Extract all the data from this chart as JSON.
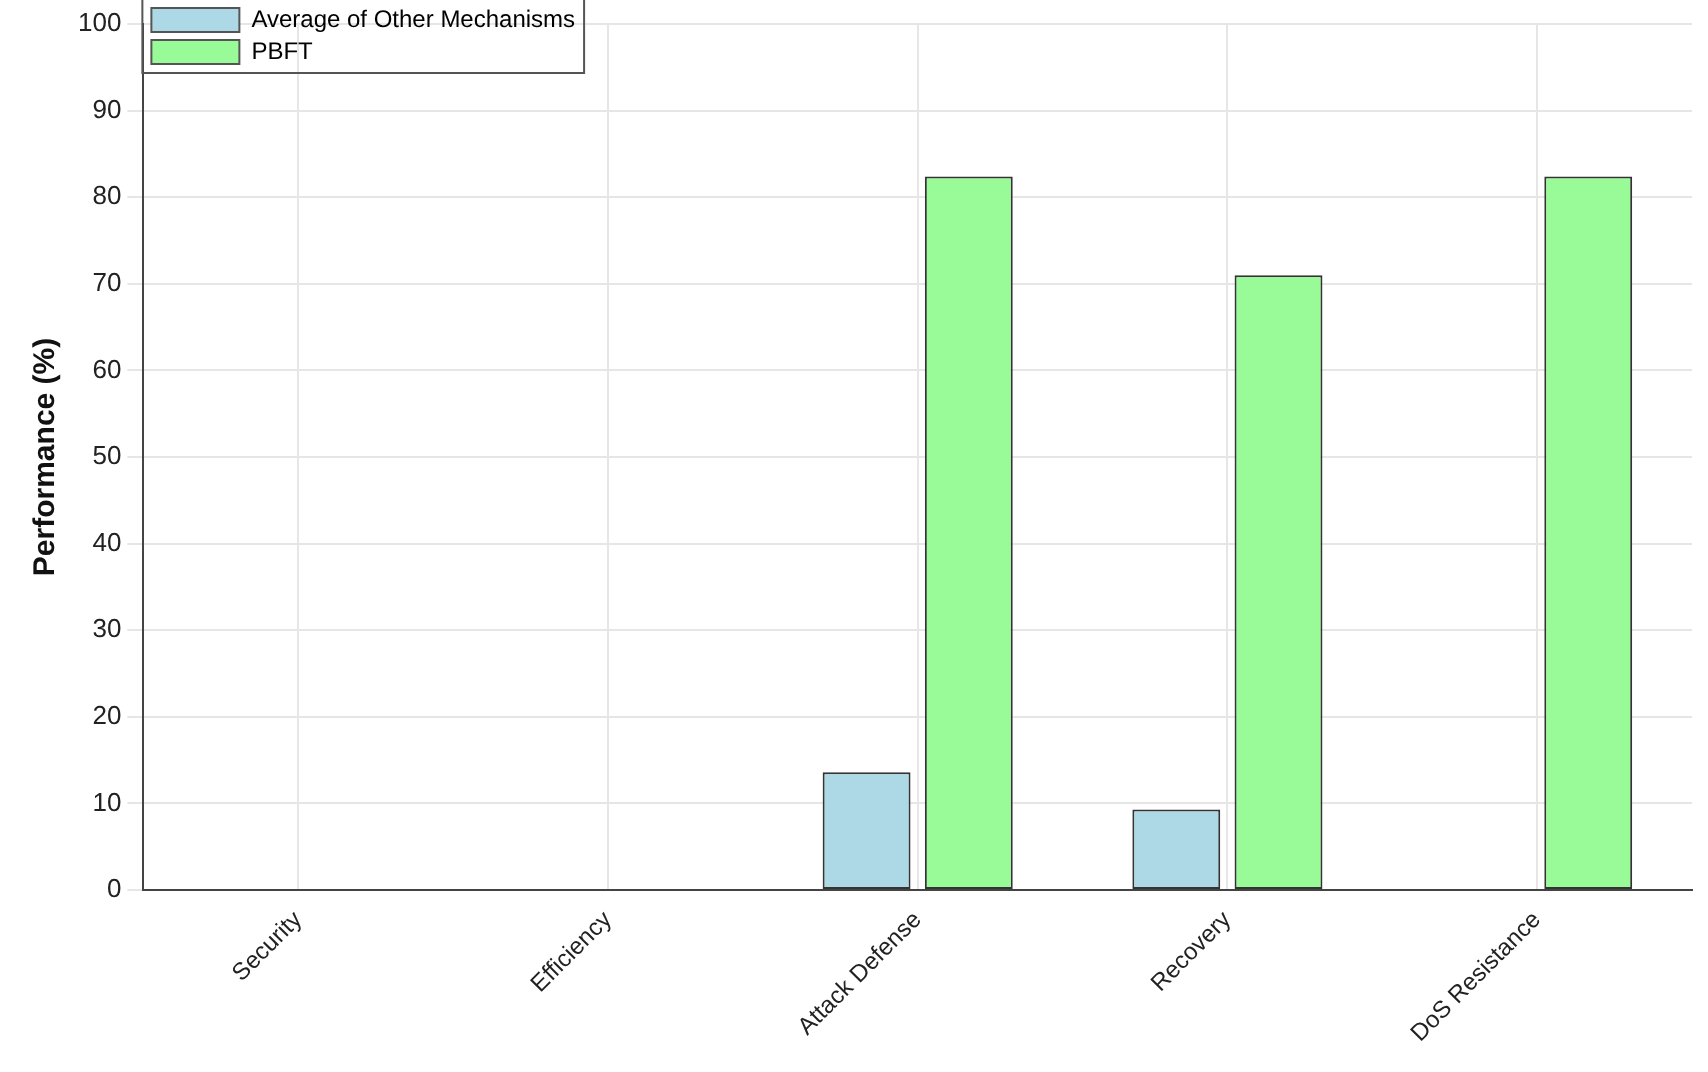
{
  "chart_data": {
    "type": "bar",
    "ylabel": "Performance (%)",
    "categories": [
      "Security",
      "Efficiency",
      "Attack Defense",
      "Recovery",
      "DoS Resistance"
    ],
    "series": [
      {
        "name": "Average of Other Mechanisms",
        "color": "#add8e6",
        "values": [
          0,
          0,
          13.6,
          9.3,
          0
        ]
      },
      {
        "name": "PBFT",
        "color": "#98fb98",
        "values": [
          0,
          0,
          82.4,
          71,
          82.4
        ]
      }
    ],
    "ylim": [
      0,
      100
    ],
    "yticks": [
      0,
      10,
      20,
      30,
      40,
      50,
      60,
      70,
      80,
      90,
      100
    ],
    "grid": true,
    "legend": "top left"
  }
}
